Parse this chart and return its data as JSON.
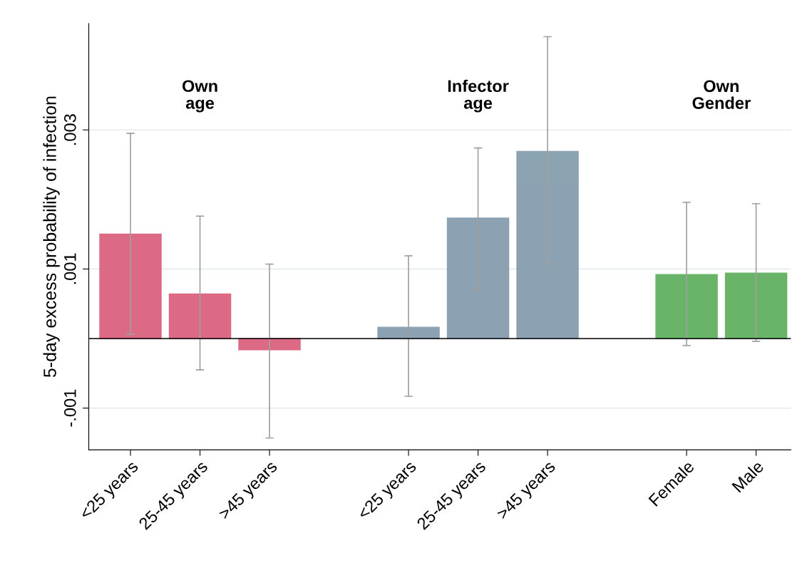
{
  "chart_data": {
    "type": "bar",
    "ylabel": "5-day excess probability of infection",
    "categories": [
      "<25 years",
      "25-45 years",
      ">45 years",
      null,
      "<25 years",
      "25-45 years",
      ">45 years",
      null,
      "Female",
      "Male"
    ],
    "values": [
      0.0015,
      0.00064,
      -0.00016,
      null,
      0.00016,
      0.00173,
      0.00269,
      null,
      0.00092,
      0.00094
    ],
    "colors": [
      "#d95a78",
      "#d95a78",
      "#d95a78",
      null,
      "#8099aa",
      "#8099aa",
      "#8099aa",
      null,
      "#5aac5a",
      "#5aac5a"
    ],
    "errors": [
      [
        6e-05,
        0.00295
      ],
      [
        -0.00045,
        0.00176
      ],
      [
        -0.00143,
        0.00107
      ],
      null,
      [
        -0.00083,
        0.00119
      ],
      [
        0.00072,
        0.00274
      ],
      [
        0.00108,
        0.00434
      ],
      null,
      [
        -0.0001,
        0.00196
      ],
      [
        -4e-05,
        0.00194
      ]
    ],
    "ylim": [
      -0.0016,
      0.00453
    ],
    "yticks": [
      {
        "value": -0.001,
        "label": "-.001"
      },
      {
        "value": 0.001,
        "label": ".001"
      },
      {
        "value": 0.003,
        "label": ".003"
      }
    ],
    "grid": "y",
    "ref_lines": [
      {
        "axis": "y",
        "value": 0,
        "color": "#000000"
      }
    ],
    "annotations": [
      "Own\nage",
      "Infector\nage",
      "Own\nGender"
    ]
  }
}
